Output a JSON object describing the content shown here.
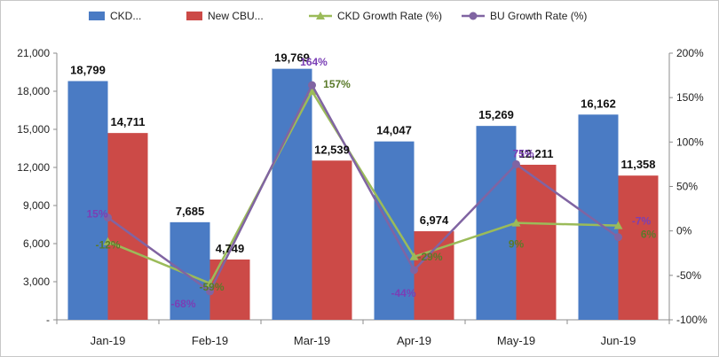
{
  "chart_data": {
    "type": "bar",
    "categories": [
      "Jan-19",
      "Feb-19",
      "Mar-19",
      "Apr-19",
      "May-19",
      "Jun-19"
    ],
    "series": [
      {
        "name": "CKD...",
        "type": "bar",
        "axis": "left",
        "color": "#4a7bc4",
        "values": [
          18799,
          7685,
          19769,
          14047,
          15269,
          16162
        ],
        "labels": [
          "18,799",
          "7,685",
          "19,769",
          "14,047",
          "15,269",
          "16,162"
        ]
      },
      {
        "name": "New CBU...",
        "type": "bar",
        "axis": "left",
        "color": "#cc4a47",
        "values": [
          14711,
          4749,
          12539,
          6974,
          12211,
          11358
        ],
        "labels": [
          "14,711",
          "4,749",
          "12,539",
          "6,974",
          "12,211",
          "11,358"
        ]
      },
      {
        "name": "CKD Growth Rate (%)",
        "type": "line",
        "axis": "right",
        "color": "#9bbb59",
        "label_color": "#5a7a2a",
        "values": [
          -12,
          -59,
          157,
          -29,
          9,
          6
        ],
        "labels": [
          "-12%",
          "-59%",
          "157%",
          "-29%",
          "9%",
          "6%"
        ]
      },
      {
        "name": "BU Growth Rate (%)",
        "type": "line",
        "axis": "right",
        "color": "#8064a2",
        "label_color": "#7a3fb5",
        "values": [
          15,
          -68,
          164,
          -44,
          75,
          -7
        ],
        "labels": [
          "15%",
          "-68%",
          "164%",
          "-44%",
          "75%",
          "-7%"
        ]
      }
    ],
    "y_left": {
      "min": 0,
      "max": 21000,
      "ticks": [
        0,
        3000,
        6000,
        9000,
        12000,
        15000,
        18000,
        21000
      ],
      "tick_labels": [
        "-",
        "3,000",
        "6,000",
        "9,000",
        "12,000",
        "15,000",
        "18,000",
        "21,000"
      ]
    },
    "y_right": {
      "min": -100,
      "max": 200,
      "ticks": [
        -100,
        -50,
        0,
        50,
        100,
        150,
        200
      ],
      "tick_labels": [
        "-100%",
        "-50%",
        "0%",
        "50%",
        "100%",
        "150%",
        "200%"
      ]
    },
    "legend_position": "top",
    "grid": false
  }
}
